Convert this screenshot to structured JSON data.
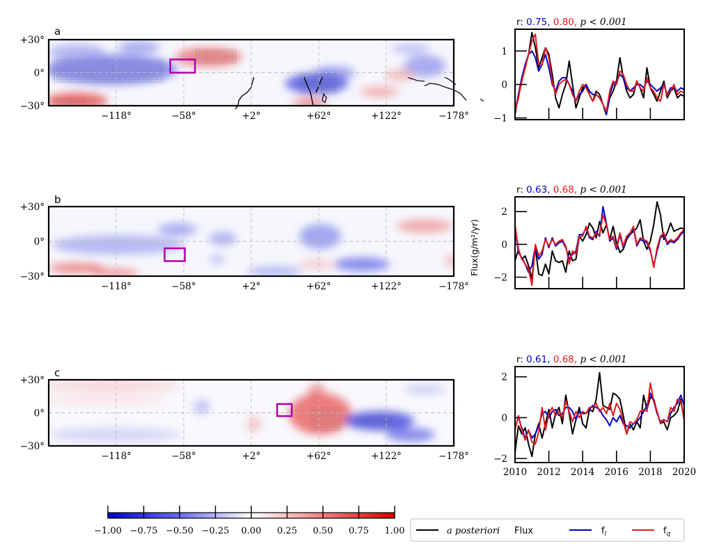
{
  "figure": {
    "colors": {
      "posteriori": "#000000",
      "fl": "#0000cc",
      "fq": "#e31a1c",
      "region_box": "#b000b0",
      "negative": "#2b2bd8",
      "positive": "#d62728"
    },
    "shared_ylabel": "Flux(g/m²/yr)",
    "legend": {
      "placement": "bottom-right",
      "entries": [
        {
          "key": "posteriori",
          "label_italic": "a posteriori",
          "label": "Flux"
        },
        {
          "key": "fl",
          "label": "f",
          "sub": "l"
        },
        {
          "key": "fq",
          "label": "f",
          "sub": "q"
        }
      ]
    },
    "colorbar": {
      "range": [
        -1.0,
        1.0
      ],
      "cmap": "bwr",
      "ticks": [
        "−1.00",
        "−0.75",
        "−0.50",
        "−0.25",
        "0.00",
        "0.25",
        "0.50",
        "0.75",
        "1.00"
      ]
    }
  },
  "chart_data": [
    {
      "type": "heatmap",
      "panel": "a",
      "title": "a",
      "description": "Correlation map (lon x lat) with stippling for significance and magenta box marking region",
      "lon_ticks": [
        "−118°",
        "−58°",
        "+2°",
        "+62°",
        "+122°",
        "−178°"
      ],
      "lat_ticks": [
        "+30°",
        "0°",
        "−30°"
      ],
      "lon_range": [
        -178,
        182
      ],
      "lat_range": [
        -30,
        30
      ],
      "region_box": {
        "lon": [
          -70,
          -48
        ],
        "lat": [
          0,
          12
        ]
      }
    },
    {
      "type": "line",
      "panel": "a",
      "title_prefix": "r:",
      "r_fl": "0.75",
      "r_fq": "0.80",
      "p_text": "p < 0.001",
      "xlim": [
        2010,
        2020
      ],
      "ylim": [
        -1.05,
        1.65
      ],
      "yticks": [
        -1,
        0,
        1
      ],
      "xticks": [
        2010,
        2012,
        2014,
        2016,
        2018,
        2020
      ],
      "x": [
        2010.0,
        2010.2,
        2010.4,
        2010.6,
        2010.8,
        2011.0,
        2011.2,
        2011.4,
        2011.6,
        2011.8,
        2012.0,
        2012.2,
        2012.4,
        2012.6,
        2012.8,
        2013.0,
        2013.2,
        2013.4,
        2013.6,
        2013.8,
        2014.0,
        2014.2,
        2014.4,
        2014.6,
        2014.8,
        2015.0,
        2015.2,
        2015.4,
        2015.6,
        2015.8,
        2016.0,
        2016.2,
        2016.4,
        2016.6,
        2016.8,
        2017.0,
        2017.2,
        2017.4,
        2017.6,
        2017.8,
        2018.0,
        2018.2,
        2018.4,
        2018.6,
        2018.8,
        2019.0,
        2019.2,
        2019.4,
        2019.6,
        2019.8,
        2020.0
      ],
      "series": [
        {
          "name": "a posteriori Flux",
          "key": "posteriori",
          "values": [
            -0.9,
            -0.3,
            0.1,
            0.5,
            0.9,
            1.55,
            1.1,
            0.5,
            0.8,
            1.1,
            0.9,
            0.3,
            -0.4,
            -0.7,
            -0.3,
            0.0,
            0.7,
            0.0,
            -0.7,
            -0.4,
            -0.1,
            0.0,
            -0.3,
            -0.5,
            -0.2,
            -0.3,
            -0.6,
            -0.9,
            -0.4,
            -0.2,
            0.1,
            0.8,
            0.2,
            -0.2,
            -0.4,
            -0.3,
            0.1,
            -0.1,
            -0.4,
            0.5,
            -0.1,
            -0.3,
            -0.5,
            -0.2,
            0.1,
            -0.4,
            -0.2,
            -0.1,
            -0.4,
            -0.3,
            -0.35
          ]
        },
        {
          "name": "f_l",
          "key": "fl",
          "values": [
            -0.8,
            -0.3,
            0.2,
            0.6,
            0.9,
            1.0,
            0.8,
            0.4,
            0.6,
            0.9,
            0.5,
            0.0,
            -0.2,
            0.1,
            0.2,
            0.2,
            0.0,
            -0.2,
            -0.5,
            -0.3,
            -0.2,
            0.0,
            -0.2,
            -0.3,
            -0.3,
            -0.4,
            -0.6,
            -0.9,
            -0.3,
            0.0,
            0.1,
            0.3,
            0.2,
            -0.1,
            -0.2,
            -0.1,
            0.0,
            0.0,
            -0.1,
            0.1,
            0.0,
            -0.1,
            -0.2,
            -0.1,
            0.0,
            -0.3,
            -0.1,
            -0.1,
            -0.2,
            -0.1,
            -0.15
          ]
        },
        {
          "name": "f_q",
          "key": "fq",
          "values": [
            -0.8,
            -0.4,
            0.1,
            0.5,
            0.9,
            1.3,
            1.5,
            0.6,
            0.6,
            1.1,
            0.8,
            0.1,
            -0.3,
            0.0,
            0.1,
            0.15,
            0.0,
            -0.3,
            -0.5,
            -0.2,
            0.0,
            -0.1,
            -0.3,
            -0.5,
            -0.3,
            -0.4,
            -0.6,
            -0.8,
            -0.2,
            0.1,
            0.0,
            0.4,
            0.3,
            0.0,
            -0.2,
            -0.2,
            0.1,
            -0.1,
            -0.2,
            0.2,
            -0.1,
            -0.2,
            -0.4,
            -0.5,
            0.0,
            -0.3,
            -0.2,
            0.0,
            -0.3,
            -0.2,
            -0.25
          ]
        }
      ]
    },
    {
      "type": "heatmap",
      "panel": "b",
      "title": "b",
      "lon_ticks": [
        "−118°",
        "−58°",
        "+2°",
        "+62°",
        "+122°",
        "−178°"
      ],
      "lat_ticks": [
        "+30°",
        "0°",
        "−30°"
      ],
      "lon_range": [
        -178,
        182
      ],
      "lat_range": [
        -30,
        30
      ],
      "region_box": {
        "lon": [
          -75,
          -57
        ],
        "lat": [
          -17,
          -6
        ]
      }
    },
    {
      "type": "line",
      "panel": "b",
      "title_prefix": "r:",
      "r_fl": "0.63",
      "r_fq": "0.68",
      "p_text": "p < 0.001",
      "xlim": [
        2010,
        2020
      ],
      "ylim": [
        -2.7,
        2.9
      ],
      "yticks": [
        -2,
        0,
        2
      ],
      "xticks": [
        2010,
        2012,
        2014,
        2016,
        2018,
        2020
      ],
      "x": [
        2010.0,
        2010.2,
        2010.4,
        2010.6,
        2010.8,
        2011.0,
        2011.2,
        2011.4,
        2011.6,
        2011.8,
        2012.0,
        2012.2,
        2012.4,
        2012.6,
        2012.8,
        2013.0,
        2013.2,
        2013.4,
        2013.6,
        2013.8,
        2014.0,
        2014.2,
        2014.4,
        2014.6,
        2014.8,
        2015.0,
        2015.2,
        2015.4,
        2015.6,
        2015.8,
        2016.0,
        2016.2,
        2016.4,
        2016.6,
        2016.8,
        2017.0,
        2017.2,
        2017.4,
        2017.6,
        2017.8,
        2018.0,
        2018.2,
        2018.4,
        2018.6,
        2018.8,
        2019.0,
        2019.2,
        2019.4,
        2019.6,
        2019.8,
        2020.0
      ],
      "series": [
        {
          "name": "a posteriori Flux",
          "key": "posteriori",
          "values": [
            -1.0,
            -0.3,
            -0.9,
            -0.7,
            -1.3,
            -2.1,
            -0.2,
            -1.8,
            -1.9,
            -1.2,
            -1.8,
            -0.4,
            -1.0,
            -1.1,
            -1.0,
            -1.7,
            -0.4,
            -1.0,
            -0.9,
            0.5,
            0.2,
            0.6,
            1.3,
            1.0,
            0.4,
            1.4,
            0.7,
            1.2,
            0.3,
            1.1,
            0.1,
            -0.5,
            -0.3,
            0.3,
            0.6,
            0.8,
            1.0,
            1.5,
            0.2,
            -0.3,
            0.2,
            1.2,
            2.6,
            1.8,
            0.3,
            0.7,
            1.3,
            0.8,
            0.9,
            1.0,
            0.95
          ]
        },
        {
          "name": "f_l",
          "key": "fl",
          "values": [
            1.0,
            -0.5,
            -0.8,
            -1.2,
            -1.7,
            -1.3,
            -0.1,
            -0.9,
            -0.6,
            0.4,
            -0.2,
            0.4,
            -0.1,
            0.1,
            0.2,
            -0.2,
            -0.9,
            -0.6,
            -0.4,
            0.6,
            0.6,
            1.0,
            0.4,
            0.3,
            0.8,
            0.5,
            2.3,
            1.3,
            0.2,
            0.4,
            -0.3,
            0.6,
            -0.2,
            0.4,
            0.6,
            1.0,
            -0.1,
            0.3,
            0.2,
            0.1,
            -0.4,
            -1.3,
            -0.4,
            0.4,
            0.6,
            0.0,
            0.2,
            0.1,
            0.3,
            0.6,
            0.8
          ]
        },
        {
          "name": "f_q",
          "key": "fq",
          "values": [
            1.2,
            -0.3,
            -0.9,
            -1.2,
            -1.5,
            -2.5,
            0.0,
            -0.7,
            -0.4,
            0.3,
            -0.1,
            0.3,
            0.0,
            0.2,
            0.3,
            -0.1,
            -1.2,
            -0.4,
            -0.6,
            0.5,
            0.5,
            1.1,
            0.5,
            0.4,
            0.7,
            0.6,
            1.8,
            1.2,
            0.3,
            0.5,
            -0.2,
            0.7,
            -0.1,
            0.5,
            0.7,
            1.1,
            0.0,
            0.4,
            0.3,
            0.2,
            -0.3,
            -1.4,
            -0.2,
            0.5,
            0.7,
            0.1,
            0.3,
            0.2,
            0.4,
            0.7,
            0.9
          ]
        }
      ]
    },
    {
      "type": "heatmap",
      "panel": "c",
      "title": "c",
      "lon_ticks": [
        "−118°",
        "−58°",
        "+2°",
        "+62°",
        "+122°",
        "−178°"
      ],
      "lat_ticks": [
        "+30°",
        "0°",
        "−30°"
      ],
      "lon_range": [
        -178,
        182
      ],
      "lat_range": [
        -30,
        30
      ],
      "region_box": {
        "lon": [
          25,
          38
        ],
        "lat": [
          -3,
          8
        ]
      }
    },
    {
      "type": "line",
      "panel": "c",
      "title_prefix": "r:",
      "r_fl": "0.61",
      "r_fq": "0.68",
      "p_text": "p < 0.001",
      "xlim": [
        2010,
        2020
      ],
      "ylim": [
        -2.2,
        2.5
      ],
      "yticks": [
        -2,
        0,
        2
      ],
      "xticks": [
        2010,
        2012,
        2014,
        2016,
        2018,
        2020
      ],
      "xticklabels": [
        "2010",
        "2012",
        "2014",
        "2016",
        "2018",
        "2020"
      ],
      "x": [
        2010.0,
        2010.2,
        2010.4,
        2010.6,
        2010.8,
        2011.0,
        2011.2,
        2011.4,
        2011.6,
        2011.8,
        2012.0,
        2012.2,
        2012.4,
        2012.6,
        2012.8,
        2013.0,
        2013.2,
        2013.4,
        2013.6,
        2013.8,
        2014.0,
        2014.2,
        2014.4,
        2014.6,
        2014.8,
        2015.0,
        2015.2,
        2015.4,
        2015.6,
        2015.8,
        2016.0,
        2016.2,
        2016.4,
        2016.6,
        2016.8,
        2017.0,
        2017.2,
        2017.4,
        2017.6,
        2017.8,
        2018.0,
        2018.2,
        2018.4,
        2018.6,
        2018.8,
        2019.0,
        2019.2,
        2019.4,
        2019.6,
        2019.8,
        2020.0
      ],
      "series": [
        {
          "name": "a posteriori Flux",
          "key": "posteriori",
          "values": [
            -1.7,
            -0.4,
            -0.8,
            -0.5,
            -1.3,
            -1.9,
            -0.8,
            -0.3,
            -1.0,
            -0.3,
            0.4,
            -0.5,
            0.2,
            0.5,
            -0.3,
            1.1,
            0.2,
            -0.8,
            -0.1,
            0.5,
            -0.3,
            -0.5,
            0.4,
            0.3,
            0.9,
            2.2,
            0.6,
            0.5,
            0.4,
            1.2,
            1.1,
            0.9,
            0.1,
            -0.8,
            -0.3,
            -0.6,
            -0.2,
            -0.5,
            1.1,
            0.4,
            1.0,
            0.9,
            0.3,
            -0.3,
            -0.2,
            -0.6,
            0.0,
            0.1,
            0.3,
            0.9,
            -0.1
          ]
        },
        {
          "name": "f_l",
          "key": "fl",
          "values": [
            0.0,
            0.0,
            -0.5,
            -1.0,
            -0.6,
            -1.0,
            -0.8,
            -0.4,
            0.2,
            0.3,
            0.0,
            0.3,
            0.4,
            0.1,
            0.2,
            0.5,
            0.5,
            0.3,
            -0.1,
            0.3,
            0.2,
            0.2,
            0.4,
            0.6,
            0.5,
            0.4,
            0.1,
            -0.1,
            -0.4,
            0.0,
            -0.2,
            0.1,
            -0.3,
            -0.4,
            -0.5,
            -0.3,
            -0.2,
            0.0,
            0.3,
            0.6,
            1.2,
            0.8,
            0.2,
            -0.2,
            -0.1,
            -0.2,
            0.2,
            0.5,
            0.7,
            1.1,
            0.6
          ]
        },
        {
          "name": "f_q",
          "key": "fq",
          "values": [
            -0.6,
            0.1,
            -0.6,
            -1.1,
            -0.6,
            -1.2,
            -1.3,
            -0.7,
            0.5,
            -0.6,
            0.2,
            0.5,
            0.1,
            0.3,
            0.0,
            0.8,
            0.3,
            -0.2,
            0.3,
            0.0,
            0.3,
            0.2,
            0.5,
            0.5,
            0.7,
            0.3,
            0.5,
            0.2,
            0.7,
            0.1,
            0.7,
            0.4,
            -0.2,
            -0.8,
            -0.2,
            -0.3,
            -0.1,
            0.3,
            0.4,
            0.3,
            1.7,
            0.8,
            0.3,
            -0.3,
            -0.1,
            -0.2,
            0.5,
            0.3,
            0.9,
            0.8,
            -0.1
          ]
        }
      ]
    }
  ]
}
